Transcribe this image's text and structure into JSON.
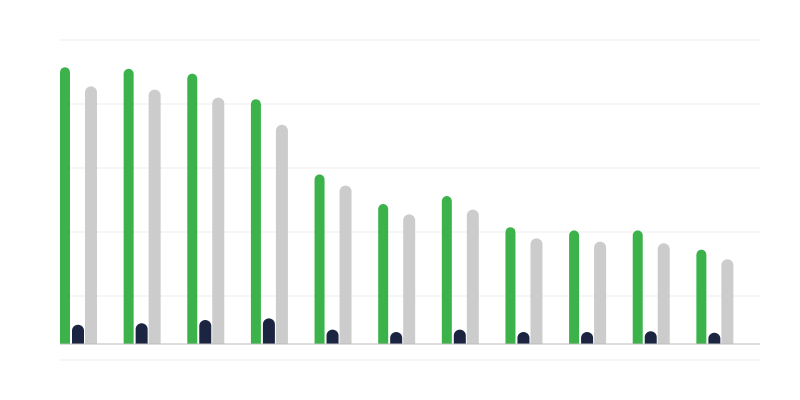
{
  "chart_data": {
    "type": "bar",
    "categories": [
      null,
      null,
      null,
      null,
      null,
      null,
      null,
      null,
      null,
      null,
      null
    ],
    "series": [
      {
        "color": "#3bb24a",
        "values": [
          17.3,
          17.2,
          16.9,
          15.3,
          10.6,
          8.75,
          9.25,
          7.3,
          7.1,
          7.1,
          5.9
        ]
      },
      {
        "color": "#1b2440",
        "values": [
          1.2,
          1.3,
          1.5,
          1.6,
          0.9,
          0.75,
          0.9,
          0.75,
          0.75,
          0.8,
          0.7
        ]
      },
      {
        "color": "#cccccc",
        "values": [
          16.1,
          15.9,
          15.4,
          13.7,
          9.9,
          8.1,
          8.4,
          6.6,
          6.4,
          6.3,
          5.3
        ]
      }
    ],
    "ylim": [
      -1,
      19
    ],
    "yticks": [
      -1,
      3,
      7,
      11,
      15,
      19
    ],
    "grid": true
  }
}
